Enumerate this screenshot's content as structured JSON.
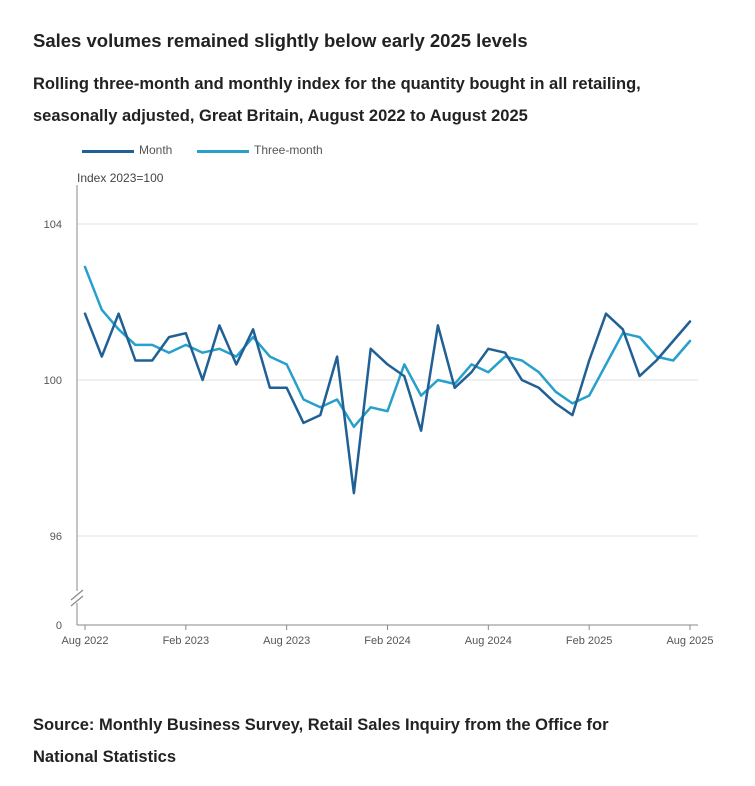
{
  "title": "Sales volumes remained slightly below early 2025 levels",
  "subtitle": "Rolling three-month and monthly index for the quantity bought in all retailing, seasonally adjusted, Great Britain, August 2022 to August 2025",
  "source": "Source: Monthly Business Survey, Retail Sales Inquiry from the Office for National Statistics",
  "chart_data": {
    "type": "line",
    "ylabel": "Index 2023=100",
    "xlabel": "",
    "x": [
      "Aug 2022",
      "Sep 2022",
      "Oct 2022",
      "Nov 2022",
      "Dec 2022",
      "Jan 2023",
      "Feb 2023",
      "Mar 2023",
      "Apr 2023",
      "May 2023",
      "Jun 2023",
      "Jul 2023",
      "Aug 2023",
      "Sep 2023",
      "Oct 2023",
      "Nov 2023",
      "Dec 2023",
      "Jan 2024",
      "Feb 2024",
      "Mar 2024",
      "Apr 2024",
      "May 2024",
      "Jun 2024",
      "Jul 2024",
      "Aug 2024",
      "Sep 2024",
      "Oct 2024",
      "Nov 2024",
      "Dec 2024",
      "Jan 2025",
      "Feb 2025",
      "Mar 2025",
      "Apr 2025",
      "May 2025",
      "Jun 2025",
      "Jul 2025",
      "Aug 2025"
    ],
    "x_ticks": [
      "Aug 2022",
      "Feb 2023",
      "Aug 2023",
      "Feb 2024",
      "Aug 2024",
      "Feb 2025",
      "Aug 2025"
    ],
    "y_ticks": [
      "104",
      "100",
      "96",
      "0"
    ],
    "y_break": true,
    "ylim": [
      94.8,
      104.8
    ],
    "grid": true,
    "legend_position": "top-left",
    "series": [
      {
        "name": "Month",
        "color": "#206095",
        "values": [
          101.7,
          100.6,
          101.7,
          100.5,
          100.5,
          101.1,
          101.2,
          100.0,
          101.4,
          100.4,
          101.3,
          99.8,
          99.8,
          98.9,
          99.1,
          100.6,
          97.1,
          100.8,
          100.4,
          100.1,
          98.7,
          101.4,
          99.8,
          100.2,
          100.8,
          100.7,
          100.0,
          99.8,
          99.4,
          99.1,
          100.5,
          101.7,
          101.3,
          100.1,
          100.5,
          101.0,
          101.5
        ]
      },
      {
        "name": "Three-month",
        "color": "#27a0cc",
        "values": [
          102.9,
          101.8,
          101.3,
          100.9,
          100.9,
          100.7,
          100.9,
          100.7,
          100.8,
          100.6,
          101.1,
          100.6,
          100.4,
          99.5,
          99.3,
          99.5,
          98.8,
          99.3,
          99.2,
          100.4,
          99.6,
          100.0,
          99.9,
          100.4,
          100.2,
          100.6,
          100.5,
          100.2,
          99.7,
          99.4,
          99.6,
          100.4,
          101.2,
          101.1,
          100.6,
          100.5,
          101.0
        ]
      }
    ]
  }
}
